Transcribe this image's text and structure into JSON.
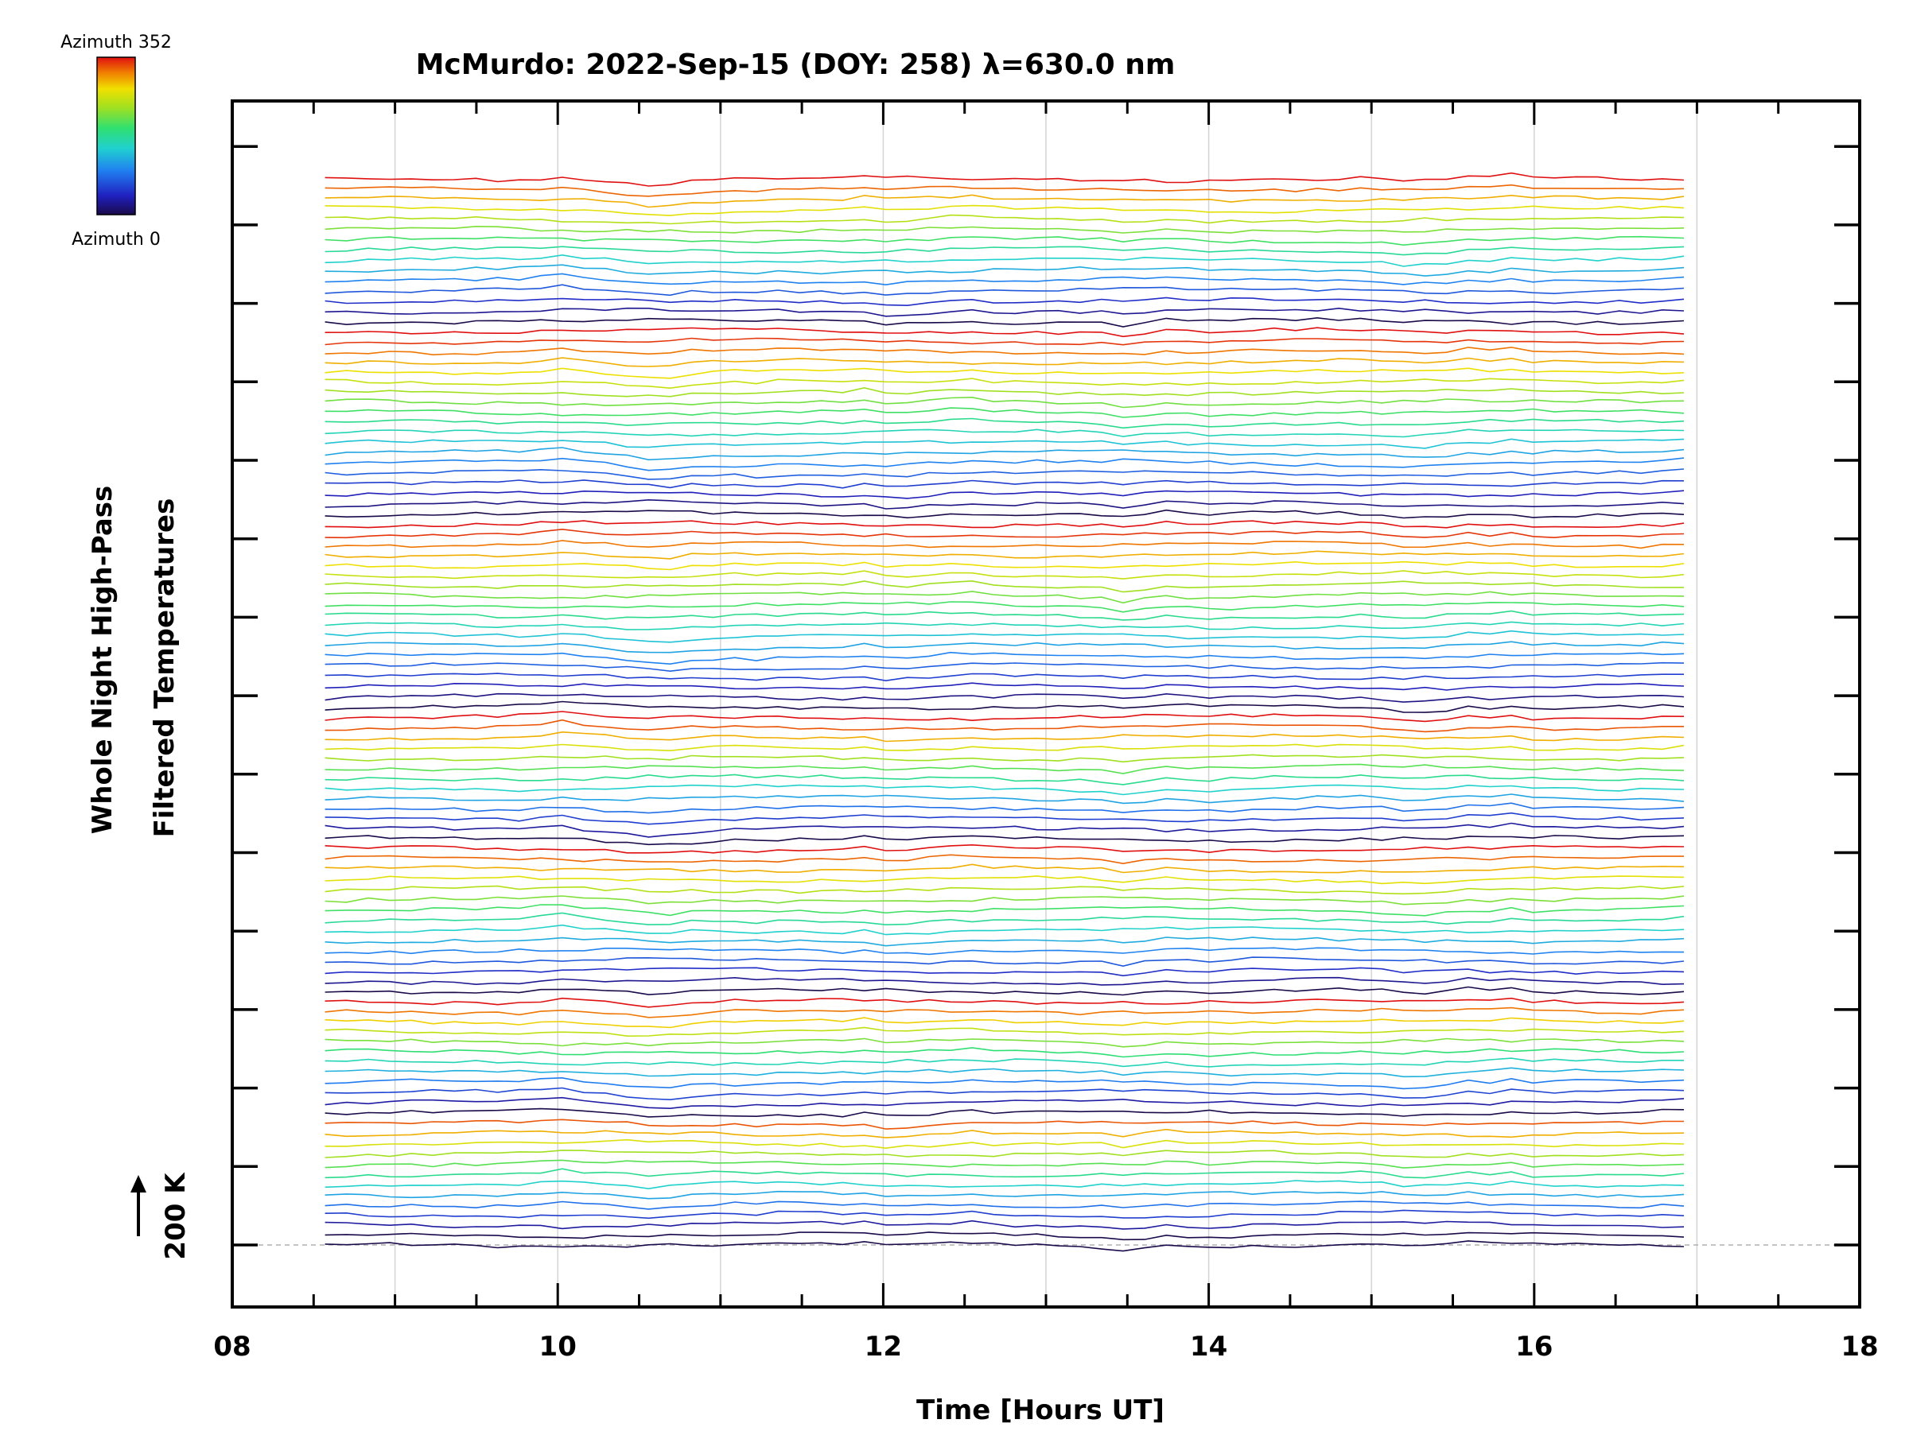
{
  "chart_data": {
    "type": "line",
    "title": "McMurdo: 2022-Sep-15 (DOY: 258) λ=630.0 nm",
    "xlabel": "Time [Hours UT]",
    "ylabel_line1": "Whole Night High-Pass",
    "ylabel_line2": "Filtered Temperatures",
    "x_tick_labels": [
      "08",
      "10",
      "12",
      "14",
      "16",
      "18"
    ],
    "x_ticks": [
      8,
      10,
      12,
      14,
      16,
      18
    ],
    "xlim": [
      8,
      18
    ],
    "gridlines_x": [
      9,
      10,
      11,
      12,
      13,
      14,
      15,
      16,
      17
    ],
    "data_time_range": [
      8.57,
      16.92
    ],
    "colorbar": {
      "top_label": "Azimuth 352",
      "bottom_label": "Azimuth 0",
      "min": 0,
      "max": 352
    },
    "scale_bar_label": "200 K",
    "baseline_style": "dashed",
    "series_groups": [
      {
        "azimuths": [
          0
        ]
      },
      {
        "azimuths": [
          0,
          30,
          60,
          90,
          120,
          150,
          180,
          210,
          240,
          270,
          300,
          330
        ]
      },
      {
        "azimuths": [
          0,
          32,
          64,
          96,
          128,
          160,
          192,
          224,
          256,
          288,
          320,
          352
        ]
      },
      {
        "azimuths": [
          0,
          25,
          50,
          75,
          100,
          125,
          150,
          175,
          200,
          225,
          250,
          275,
          300,
          325,
          352
        ]
      },
      {
        "azimuths": [
          0,
          30,
          60,
          90,
          120,
          150,
          180,
          210,
          240,
          270,
          300,
          330,
          352
        ]
      },
      {
        "azimuths": [
          0,
          20,
          40,
          60,
          80,
          100,
          120,
          140,
          160,
          180,
          200,
          220,
          240,
          260,
          280,
          300,
          320,
          340,
          352
        ]
      },
      {
        "azimuths": [
          0,
          20,
          40,
          60,
          80,
          100,
          120,
          140,
          160,
          180,
          200,
          220,
          240,
          260,
          280,
          300,
          320,
          340,
          352
        ]
      },
      {
        "azimuths": [
          0,
          25,
          50,
          75,
          100,
          125,
          150,
          175,
          200,
          225,
          250,
          275,
          300,
          325,
          352
        ]
      }
    ]
  }
}
